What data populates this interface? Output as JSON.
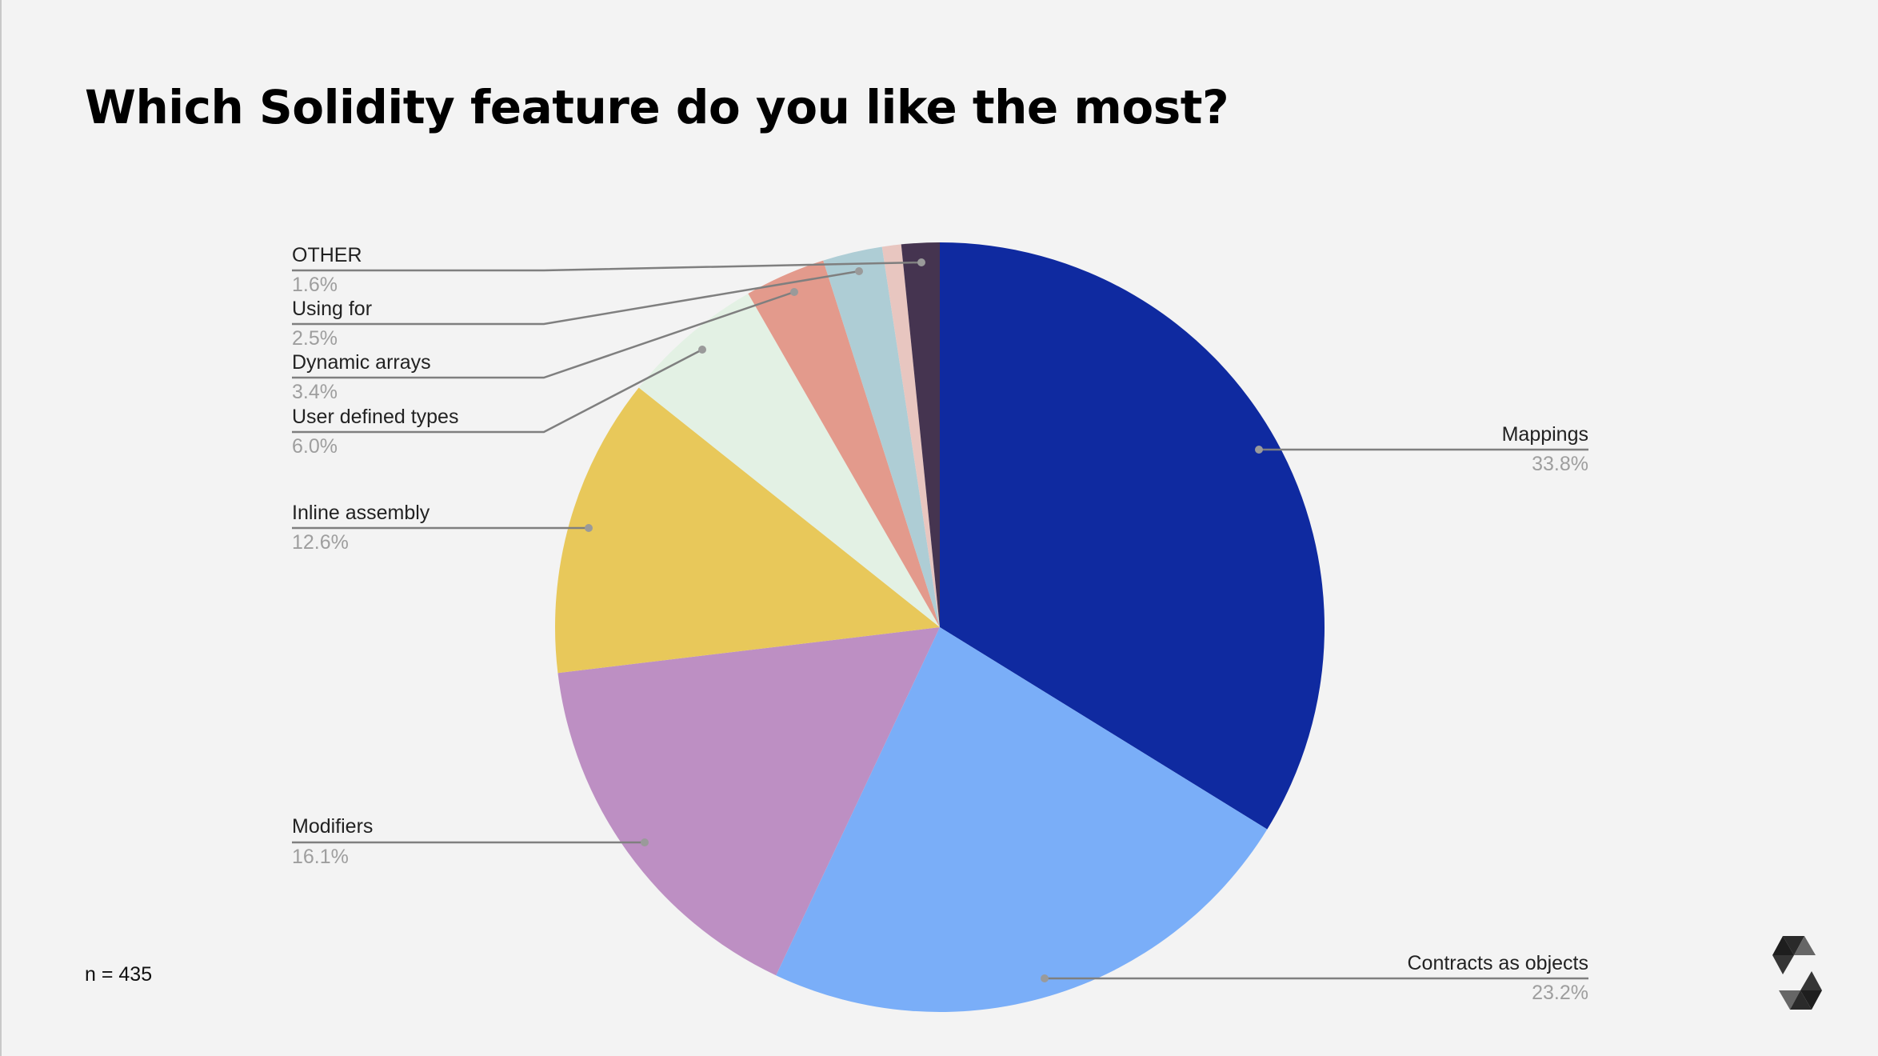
{
  "title": "Which Solidity feature do you like the most?",
  "sample_size": "n = 435",
  "logo": "solidity-logo",
  "chart_data": {
    "type": "pie",
    "title": "Which Solidity feature do you like the most?",
    "start_angle_deg": 0,
    "direction": "clockwise",
    "slices": [
      {
        "label": "Mappings",
        "value": 33.8,
        "display": "33.8%",
        "color": "#0f2aa0"
      },
      {
        "label": "Contracts as objects",
        "value": 23.2,
        "display": "23.2%",
        "color": "#7aaef8"
      },
      {
        "label": "Modifiers",
        "value": 16.1,
        "display": "16.1%",
        "color": "#bd8fc3"
      },
      {
        "label": "Inline assembly",
        "value": 12.6,
        "display": "12.6%",
        "color": "#e8c85a"
      },
      {
        "label": "User defined types",
        "value": 6.0,
        "display": "6.0%",
        "color": "#e3f1e4"
      },
      {
        "label": "Dynamic arrays",
        "value": 3.4,
        "display": "3.4%",
        "color": "#e39a8c"
      },
      {
        "label": "Using for",
        "value": 2.5,
        "display": "2.5%",
        "color": "#aecdd5"
      },
      {
        "label": "",
        "value": 0.8,
        "display": "",
        "color": "#e8c6c0"
      },
      {
        "label": "OTHER",
        "value": 1.6,
        "display": "1.6%",
        "color": "#453450"
      }
    ],
    "legend": "leader-line labels"
  },
  "labels": {
    "mappings": {
      "name": "Mappings",
      "pct": "33.8%"
    },
    "contracts": {
      "name": "Contracts as objects",
      "pct": "23.2%"
    },
    "modifiers": {
      "name": "Modifiers",
      "pct": "16.1%"
    },
    "inline": {
      "name": "Inline assembly",
      "pct": "12.6%"
    },
    "udt": {
      "name": "User defined types",
      "pct": "6.0%"
    },
    "dynamic": {
      "name": "Dynamic arrays",
      "pct": "3.4%"
    },
    "usingfor": {
      "name": "Using for",
      "pct": "2.5%"
    },
    "other": {
      "name": "OTHER",
      "pct": "1.6%"
    }
  },
  "colors": {
    "background": "#f3f3f3",
    "leader": "#7f7f7f",
    "dot": "#9a9a9a"
  }
}
